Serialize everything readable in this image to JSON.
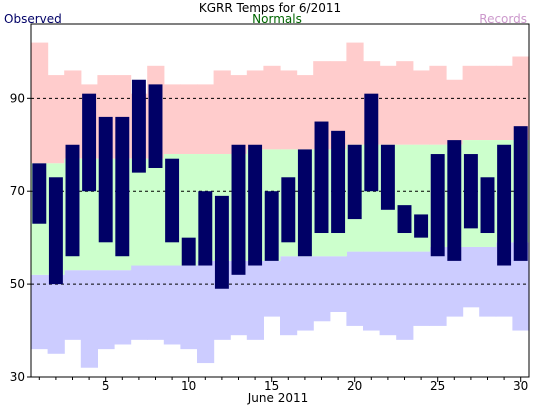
{
  "chart_data": {
    "type": "bar",
    "title": "KGRR Temps for 6/2011",
    "xlabel": "June 2011",
    "ylabel": "",
    "legend": {
      "observed": "Observed",
      "normals": "Normals",
      "records": "Records",
      "placement": "top"
    },
    "colors": {
      "observed": "#000066",
      "normals_band": "#ccffcc",
      "normals_label": "#006600",
      "record_high_band": "#ffcccc",
      "record_low_band": "#ccccff",
      "records_label": "#cc99cc",
      "grid": "#000000"
    },
    "ylim": [
      30,
      106
    ],
    "y_ticks": [
      30,
      50,
      70,
      90
    ],
    "y_gridlines": [
      50,
      70,
      90
    ],
    "x_ticks": [
      5,
      10,
      15,
      20,
      25,
      30
    ],
    "days": [
      1,
      2,
      3,
      4,
      5,
      6,
      7,
      8,
      9,
      10,
      11,
      12,
      13,
      14,
      15,
      16,
      17,
      18,
      19,
      20,
      21,
      22,
      23,
      24,
      25,
      26,
      27,
      28,
      29,
      30
    ],
    "series": [
      {
        "name": "Observed",
        "high": [
          76,
          73,
          80,
          91,
          86,
          86,
          94,
          93,
          77,
          60,
          70,
          69,
          80,
          80,
          70,
          73,
          79,
          85,
          83,
          80,
          91,
          80,
          67,
          65,
          78,
          81,
          78,
          73,
          80,
          84
        ],
        "low": [
          63,
          50,
          56,
          70,
          59,
          56,
          74,
          75,
          59,
          54,
          54,
          49,
          52,
          54,
          55,
          59,
          56,
          61,
          61,
          64,
          70,
          66,
          61,
          60,
          56,
          55,
          62,
          61,
          54,
          55
        ]
      },
      {
        "name": "Normals",
        "high": [
          76,
          76,
          77,
          77,
          77,
          77,
          77,
          77,
          78,
          78,
          78,
          78,
          78,
          79,
          79,
          79,
          79,
          79,
          79,
          80,
          80,
          80,
          80,
          80,
          80,
          80,
          81,
          81,
          81,
          81
        ],
        "low": [
          52,
          52,
          53,
          53,
          53,
          53,
          54,
          54,
          54,
          54,
          55,
          55,
          55,
          55,
          55,
          56,
          56,
          56,
          56,
          57,
          57,
          57,
          57,
          57,
          58,
          58,
          58,
          58,
          59,
          59
        ]
      },
      {
        "name": "Records",
        "high": [
          102,
          95,
          96,
          93,
          95,
          95,
          91,
          97,
          93,
          93,
          93,
          96,
          95,
          96,
          97,
          96,
          95,
          98,
          98,
          102,
          98,
          97,
          98,
          96,
          97,
          94,
          97,
          97,
          97,
          99
        ],
        "low": [
          36,
          35,
          38,
          32,
          36,
          37,
          38,
          38,
          37,
          36,
          33,
          38,
          39,
          38,
          43,
          39,
          40,
          42,
          44,
          41,
          40,
          39,
          38,
          41,
          41,
          43,
          45,
          43,
          43,
          40
        ]
      }
    ]
  }
}
